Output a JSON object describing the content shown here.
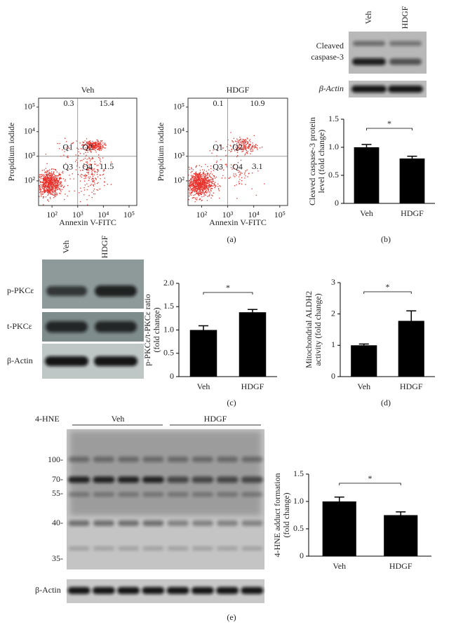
{
  "flow_plots": [
    {
      "title": "Veh",
      "quadrants": [
        0.3,
        15.4,
        11.5
      ],
      "gate_labels": [
        "Q1",
        "Q2",
        "Q3",
        "Q4"
      ],
      "xlabel": "Annexin V-FITC",
      "ylabel": "Propidium iodide",
      "xscale": "log",
      "yscale": "log",
      "color": "#e8302a",
      "xlim": [
        30,
        200000
      ],
      "ylim": [
        10,
        230000
      ],
      "xticks": [
        {
          "value": 100,
          "label": "10²"
        },
        {
          "value": 1000,
          "label": "10³"
        },
        {
          "value": 10000,
          "label": "10⁴"
        },
        {
          "value": 100000,
          "label": "10⁵"
        }
      ],
      "yticks": [
        {
          "value": 100,
          "label": "10²"
        },
        {
          "value": 1000,
          "label": "10³"
        },
        {
          "value": 10000,
          "label": "10⁴"
        },
        {
          "value": 100000,
          "label": "10⁵"
        }
      ]
    },
    {
      "title": "HDGF",
      "quadrants": [
        0.1,
        10.9,
        3.1
      ],
      "gate_labels": [
        "Q1",
        "Q2",
        "Q3",
        "Q4"
      ],
      "xlabel": "Annexin V-FITC",
      "ylabel": "Propidium iodide",
      "xscale": "log",
      "yscale": "log",
      "color": "#e8302a",
      "xlim": [
        30,
        200000
      ],
      "ylim": [
        10,
        230000
      ],
      "xticks": [
        {
          "value": 100,
          "label": "10²"
        },
        {
          "value": 1000,
          "label": "10³"
        },
        {
          "value": 10000,
          "label": "10⁴"
        },
        {
          "value": 100000,
          "label": "10⁵"
        }
      ],
      "yticks": [
        {
          "value": 100,
          "label": "10²"
        },
        {
          "value": 1000,
          "label": "10³"
        },
        {
          "value": 10000,
          "label": "10⁴"
        },
        {
          "value": 100000,
          "label": "10⁵"
        }
      ]
    }
  ],
  "chart_data": [
    {
      "type": "bar",
      "ylabel": [
        "Cleaved caspase-3 protein",
        "level (fold change)"
      ],
      "categories": [
        "Veh",
        "HDGF"
      ],
      "values": [
        1.0,
        0.8
      ],
      "errors": [
        0.05,
        0.04
      ],
      "color": "#000000",
      "ylim": [
        0,
        1.5
      ],
      "yticks": [
        0,
        0.5,
        {
          "value": 1,
          "label": "1.0"
        },
        1.5
      ],
      "significance": "*"
    },
    {
      "type": "bar",
      "ylabel": [
        "p-PKCε/t-PKCε ratio",
        "(fold change)"
      ],
      "categories": [
        "Veh",
        "HDGF"
      ],
      "values": [
        1.0,
        1.38
      ],
      "errors": [
        0.09,
        0.06
      ],
      "color": "#000000",
      "ylim": [
        0,
        2
      ],
      "yticks": [
        0,
        0.5,
        {
          "value": 1,
          "label": "1.0"
        },
        1.5,
        {
          "value": 2,
          "label": "2.0"
        }
      ],
      "significance": "*"
    },
    {
      "type": "bar",
      "ylabel": [
        "Mitochondrial ALDH2",
        "activity (fold change)"
      ],
      "categories": [
        "Veh",
        "HDGF"
      ],
      "values": [
        1.0,
        1.78
      ],
      "errors": [
        0.04,
        0.32
      ],
      "color": "#000000",
      "ylim": [
        0,
        3
      ],
      "yticks": [
        0,
        1,
        2,
        3
      ],
      "significance": "*"
    },
    {
      "type": "bar",
      "ylabel": [
        "4-HNE adduct formation",
        "(fold change)"
      ],
      "categories": [
        "Veh",
        "HDGF"
      ],
      "values": [
        1.0,
        0.75
      ],
      "errors": [
        0.08,
        0.06
      ],
      "color": "#000000",
      "ylim": [
        0,
        1.5
      ],
      "yticks": [
        0,
        0.5,
        {
          "value": 1,
          "label": "1.0"
        },
        1.5
      ],
      "significance": "*"
    }
  ],
  "blots": {
    "b": {
      "lanes": [
        "Veh",
        "HDGF"
      ],
      "rows": [
        [
          "Cleaved",
          "caspase-3"
        ],
        [
          "β-Actin"
        ]
      ]
    },
    "c": {
      "lanes": [
        "Veh",
        "HDGF"
      ],
      "rows": [
        "p-PKCε",
        "t-PKCε",
        "β-Actin"
      ]
    },
    "e": {
      "stain": "4-HNE",
      "groups": [
        "Veh",
        "HDGF"
      ],
      "markers": [
        "100-",
        "70-",
        "55-",
        "40-",
        "35-"
      ],
      "loading": "β-Actin"
    }
  },
  "panel_labels": [
    "(a)",
    "(b)",
    "(c)",
    "(d)",
    "(e)"
  ]
}
